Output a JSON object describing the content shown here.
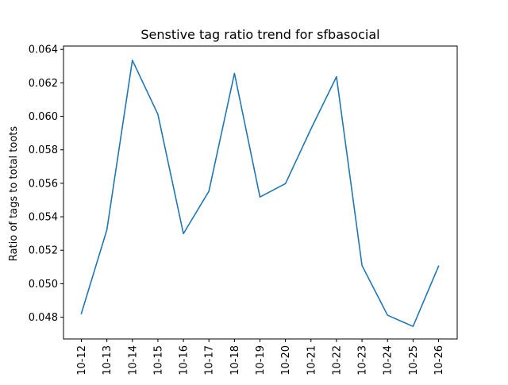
{
  "chart_data": {
    "type": "line",
    "title": "Senstive tag ratio trend for sfbasocial",
    "xlabel": "",
    "ylabel": "Ratio of tags to total toots",
    "categories": [
      "10-12",
      "10-13",
      "10-14",
      "10-15",
      "10-16",
      "10-17",
      "10-18",
      "10-19",
      "10-20",
      "10-21",
      "10-22",
      "10-23",
      "10-24",
      "10-25",
      "10-26"
    ],
    "series": [
      {
        "values": [
          0.04822,
          0.05322,
          0.06335,
          0.06012,
          0.05299,
          0.05553,
          0.06257,
          0.05518,
          0.05598,
          0.05925,
          0.06237,
          0.05109,
          0.04812,
          0.04745,
          0.05105
        ],
        "color": "#1f77b4"
      }
    ],
    "ylim": [
      0.0467,
      0.0642
    ],
    "yticks": [
      "0.048",
      "0.050",
      "0.052",
      "0.054",
      "0.056",
      "0.058",
      "0.060",
      "0.062",
      "0.064"
    ],
    "ytick_values": [
      0.048,
      0.05,
      0.052,
      0.054,
      0.056,
      0.058,
      0.06,
      0.062,
      0.064
    ],
    "grid": false,
    "legend": "none"
  }
}
